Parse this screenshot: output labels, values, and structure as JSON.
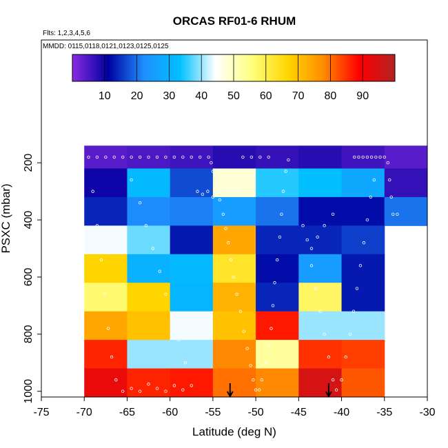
{
  "chart_data": {
    "type": "heatmap",
    "title": "ORCAS RF01-6 RHUM",
    "annotations": [
      "Flts: 1,2,3,4,5,6",
      "MMDD: 0115,0118,0121,0123,0125,0125"
    ],
    "xlabel": "Latitude (deg N)",
    "ylabel": "PSXC (mbar)",
    "xlim": [
      -75,
      -30
    ],
    "ylim": [
      1020,
      -230
    ],
    "x_ticks": [
      "-75",
      "-70",
      "-65",
      "-60",
      "-55",
      "-50",
      "-45",
      "-40",
      "-35",
      "-30"
    ],
    "y_ticks": [
      "200",
      "400",
      "600",
      "800",
      "1000"
    ],
    "colorbar": {
      "range": [
        0,
        100
      ],
      "ticks": [
        "10",
        "20",
        "30",
        "40",
        "50",
        "60",
        "70",
        "80",
        "90"
      ],
      "colors": [
        "#8a2be2",
        "#0000a0",
        "#1e90ff",
        "#00bfff",
        "#ffffff",
        "#ffff80",
        "#ffd700",
        "#ff8c00",
        "#ff0000",
        "#b22222"
      ]
    },
    "x_bins": [
      -70,
      -65,
      -60,
      -55,
      -50,
      -45,
      -40,
      -35,
      -30
    ],
    "p_bins": [
      140,
      220,
      320,
      420,
      520,
      620,
      720,
      820,
      920,
      1020
    ],
    "values": [
      [
        4,
        5,
        6,
        8,
        7,
        8,
        6,
        4
      ],
      [
        10,
        32,
        17,
        48,
        35,
        33,
        28,
        7
      ],
      [
        14,
        22,
        21,
        25,
        20,
        12,
        12,
        20
      ],
      [
        44,
        38,
        13,
        74,
        14,
        14,
        16,
        null
      ],
      [
        67,
        30,
        32,
        63,
        12,
        25,
        13,
        null
      ],
      [
        57,
        67,
        31,
        72,
        14,
        58,
        13,
        null
      ],
      [
        74,
        70,
        44,
        70,
        87,
        40,
        40,
        null
      ],
      [
        86,
        40,
        40,
        78,
        53,
        85,
        84,
        null
      ],
      [
        92,
        86,
        87,
        80,
        78,
        95,
        82,
        null
      ]
    ],
    "arrows": [
      {
        "lat": -53,
        "pressure": 1020
      },
      {
        "lat": -41.5,
        "pressure": 1020
      }
    ],
    "flight_track": [
      [
        -70.2,
        180
      ],
      [
        -69.5,
        180
      ],
      [
        -68.5,
        180
      ],
      [
        -67.5,
        180
      ],
      [
        -66.5,
        180
      ],
      [
        -65.5,
        180
      ],
      [
        -64.5,
        180
      ],
      [
        -63.5,
        180
      ],
      [
        -62.5,
        180
      ],
      [
        -61.5,
        180
      ],
      [
        -60.5,
        180
      ],
      [
        -59.5,
        180
      ],
      [
        -58.5,
        180
      ],
      [
        -57.5,
        180
      ],
      [
        -56.5,
        180
      ],
      [
        -55.5,
        180
      ],
      [
        -55.2,
        200
      ],
      [
        -55.0,
        230
      ],
      [
        -54.6,
        280
      ],
      [
        -54.2,
        330
      ],
      [
        -53.8,
        380
      ],
      [
        -53.5,
        430
      ],
      [
        -53.2,
        480
      ],
      [
        -52.9,
        540
      ],
      [
        -52.6,
        600
      ],
      [
        -52.2,
        660
      ],
      [
        -51.8,
        720
      ],
      [
        -51.4,
        790
      ],
      [
        -51.0,
        850
      ],
      [
        -50.6,
        910
      ],
      [
        -50.3,
        960
      ],
      [
        -50.0,
        995
      ],
      [
        -49.6,
        995
      ],
      [
        -49.3,
        960
      ],
      [
        -48.8,
        900
      ],
      [
        -48.5,
        840
      ],
      [
        -48.2,
        780
      ],
      [
        -48.0,
        700
      ],
      [
        -47.8,
        620
      ],
      [
        -47.5,
        540
      ],
      [
        -47.2,
        460
      ],
      [
        -47.0,
        380
      ],
      [
        -46.8,
        300
      ],
      [
        -46.5,
        230
      ],
      [
        -46.2,
        190
      ],
      [
        -51.5,
        180
      ],
      [
        -50.5,
        180
      ],
      [
        -49.5,
        180
      ],
      [
        -48.5,
        180
      ],
      [
        -64.5,
        260
      ],
      [
        -63.5,
        340
      ],
      [
        -62.8,
        420
      ],
      [
        -62.0,
        500
      ],
      [
        -61.2,
        580
      ],
      [
        -60.5,
        660
      ],
      [
        -59.8,
        740
      ],
      [
        -59.0,
        820
      ],
      [
        -58.2,
        900
      ],
      [
        -57.5,
        980
      ],
      [
        -69.0,
        300
      ],
      [
        -68.5,
        420
      ],
      [
        -68.0,
        540
      ],
      [
        -67.6,
        660
      ],
      [
        -67.2,
        780
      ],
      [
        -66.8,
        880
      ],
      [
        -66.3,
        960
      ],
      [
        -65.5,
        1000
      ],
      [
        -64.5,
        990
      ],
      [
        -63.5,
        1000
      ],
      [
        -62.5,
        975
      ],
      [
        -61.5,
        990
      ],
      [
        -60.5,
        1000
      ],
      [
        -59.5,
        980
      ],
      [
        -58.5,
        995
      ],
      [
        -56.8,
        300
      ],
      [
        -56.2,
        310
      ],
      [
        -55.6,
        300
      ],
      [
        -55.0,
        320
      ],
      [
        -54.4,
        300
      ],
      [
        -53.8,
        290
      ],
      [
        -53.2,
        300
      ],
      [
        -52.6,
        300
      ],
      [
        -52.0,
        300
      ],
      [
        -38.5,
        180
      ],
      [
        -38.0,
        180
      ],
      [
        -37.5,
        180
      ],
      [
        -37.0,
        180
      ],
      [
        -36.5,
        180
      ],
      [
        -36.0,
        180
      ],
      [
        -35.5,
        180
      ],
      [
        -35.0,
        180
      ],
      [
        -34.6,
        200
      ],
      [
        -34.4,
        260
      ],
      [
        -34.2,
        320
      ],
      [
        -34.0,
        380
      ],
      [
        -33.5,
        380
      ],
      [
        -43.5,
        560
      ],
      [
        -43.0,
        640
      ],
      [
        -42.5,
        720
      ],
      [
        -42.0,
        800
      ],
      [
        -41.5,
        880
      ],
      [
        -41.0,
        960
      ],
      [
        -40.6,
        995
      ],
      [
        -40.0,
        960
      ],
      [
        -39.5,
        880
      ],
      [
        -39.0,
        800
      ],
      [
        -38.6,
        720
      ],
      [
        -38.2,
        640
      ],
      [
        -37.8,
        560
      ],
      [
        -37.4,
        480
      ],
      [
        -37.0,
        400
      ],
      [
        -36.6,
        320
      ],
      [
        -36.2,
        260
      ],
      [
        -44.5,
        420
      ],
      [
        -44.0,
        470
      ],
      [
        -43.5,
        500
      ],
      [
        -42.8,
        460
      ],
      [
        -42.0,
        420
      ],
      [
        -41.0,
        380
      ]
    ]
  }
}
